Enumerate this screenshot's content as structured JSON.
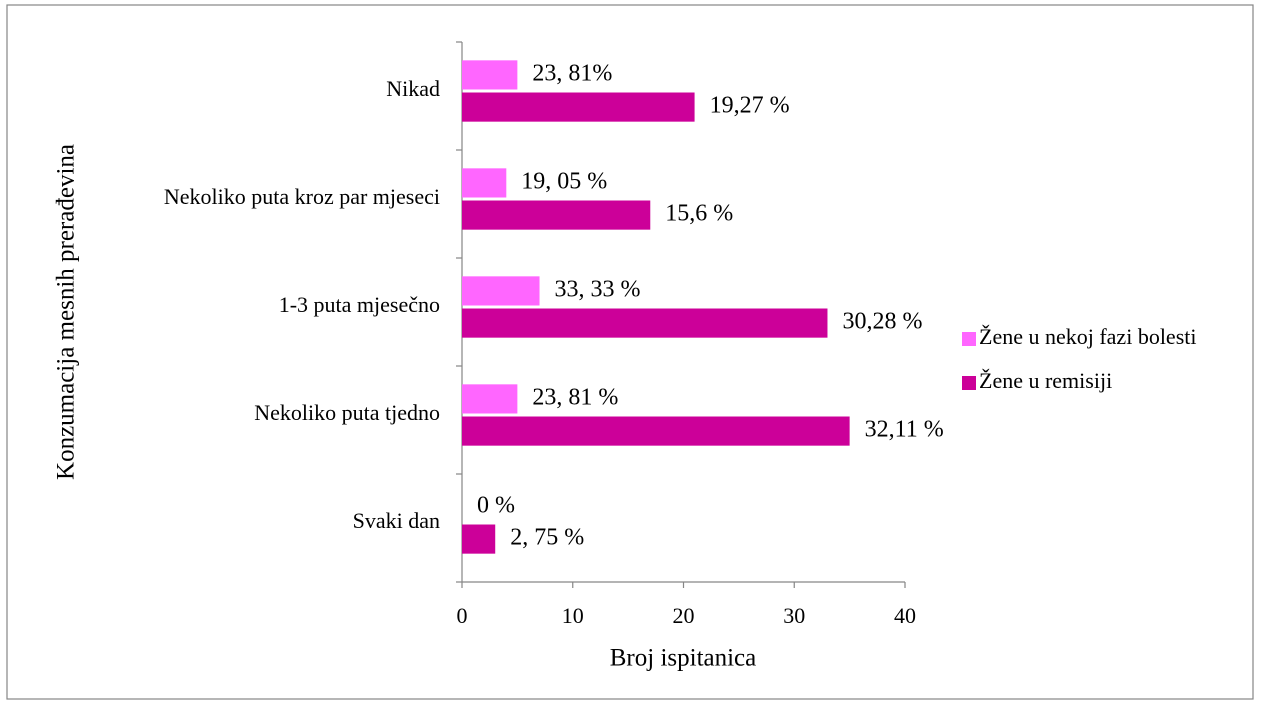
{
  "chart_data": {
    "type": "bar",
    "orientation": "horizontal",
    "y_axis_title": "Konzumacija mesnih prerađevina",
    "x_axis_title": "Broj ispitanica",
    "categories": [
      "Nikad",
      "Nekoliko puta kroz par mjeseci",
      "1-3 puta mjesečno",
      "Nekoliko puta tjedno",
      "Svaki dan"
    ],
    "series": [
      {
        "name": "Žene u nekoj fazi bolesti",
        "color": "#ff66ff",
        "values": [
          5,
          4,
          7,
          5,
          0
        ],
        "annotations": [
          "23, 81%",
          "19, 05 %",
          "33, 33 %",
          "23, 81 %",
          "0 %"
        ]
      },
      {
        "name": "Žene u remisiji",
        "color": "#cc0099",
        "values": [
          21,
          17,
          33,
          35,
          3
        ],
        "annotations": [
          "19,27 %",
          "15,6 %",
          "30,28 %",
          "32,11 %",
          "2, 75 %"
        ]
      }
    ],
    "xlim": [
      0,
      40
    ],
    "xticks": [
      0,
      10,
      20,
      30,
      40
    ],
    "grid": false,
    "legend": "right"
  }
}
